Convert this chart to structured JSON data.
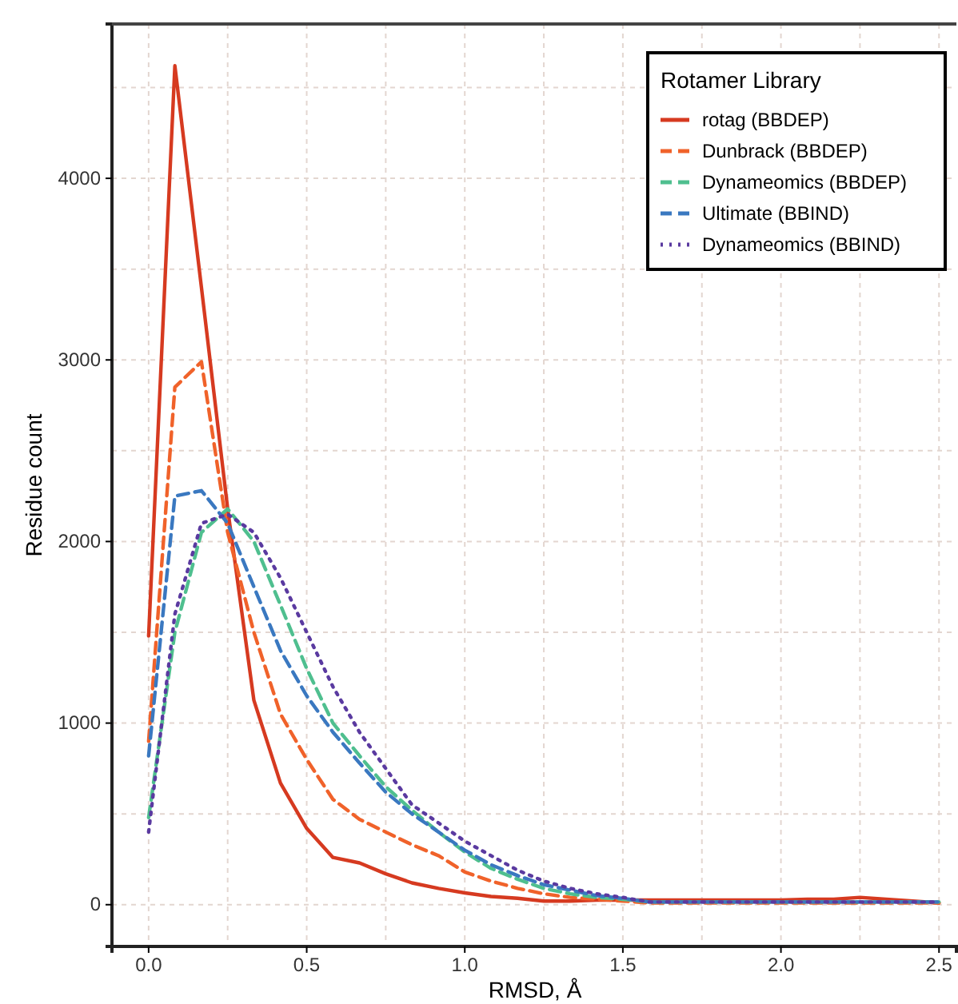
{
  "chart_data": {
    "type": "line",
    "xlabel": "RMSD, Å",
    "ylabel": "Residue count",
    "legend_title": "Rotamer Library",
    "x": [
      0,
      0.083,
      0.167,
      0.25,
      0.333,
      0.417,
      0.5,
      0.583,
      0.667,
      0.75,
      0.833,
      0.917,
      1,
      1.083,
      1.167,
      1.25,
      1.333,
      1.417,
      1.5,
      1.583,
      1.667,
      1.75,
      1.833,
      1.917,
      2,
      2.083,
      2.167,
      2.25,
      2.333,
      2.417,
      2.5
    ],
    "series": [
      {
        "name": "rotag (BBDEP)",
        "color": "#d63a20",
        "line_style": "solid",
        "values": [
          1480,
          4620,
          3400,
          2180,
          1125,
          670,
          420,
          260,
          230,
          170,
          120,
          90,
          65,
          45,
          35,
          20,
          20,
          25,
          25,
          25,
          25,
          25,
          25,
          25,
          25,
          30,
          30,
          40,
          30,
          20,
          10
        ]
      },
      {
        "name": "Dunbrack (BBDEP)",
        "color": "#f0622a",
        "line_style": "dashed",
        "values": [
          900,
          2850,
          2990,
          2050,
          1500,
          1050,
          800,
          580,
          470,
          400,
          330,
          270,
          180,
          130,
          90,
          60,
          40,
          30,
          20,
          10,
          10,
          10,
          10,
          10,
          10,
          10,
          10,
          10,
          10,
          10,
          10
        ]
      },
      {
        "name": "Dynameomics (BBDEP)",
        "color": "#4fbf8f",
        "line_style": "dashed",
        "values": [
          480,
          1500,
          2050,
          2180,
          2000,
          1650,
          1300,
          1000,
          820,
          650,
          520,
          400,
          290,
          200,
          140,
          90,
          60,
          40,
          30,
          15,
          15,
          15,
          15,
          15,
          15,
          15,
          15,
          15,
          15,
          15,
          15
        ]
      },
      {
        "name": "Ultimate (BBIND)",
        "color": "#3a78c0",
        "line_style": "dashed",
        "values": [
          820,
          2250,
          2280,
          2100,
          1750,
          1400,
          1150,
          950,
          780,
          620,
          500,
          400,
          300,
          220,
          160,
          110,
          80,
          50,
          35,
          15,
          15,
          15,
          15,
          15,
          15,
          15,
          15,
          15,
          15,
          15,
          15
        ]
      },
      {
        "name": "Dynameomics (BBIND)",
        "color": "#5a3aa0",
        "line_style": "dotted",
        "values": [
          400,
          1600,
          2100,
          2150,
          2050,
          1800,
          1500,
          1200,
          950,
          750,
          550,
          450,
          350,
          270,
          190,
          130,
          90,
          60,
          40,
          15,
          15,
          15,
          15,
          15,
          15,
          15,
          15,
          15,
          15,
          15,
          15
        ]
      }
    ],
    "xlim": [
      -0.116,
      2.555
    ],
    "xticks": [
      {
        "value": 0,
        "label": "0.0"
      },
      {
        "value": 0.5,
        "label": "0.5"
      },
      {
        "value": 1,
        "label": "1.0"
      },
      {
        "value": 1.5,
        "label": "1.5"
      },
      {
        "value": 2,
        "label": "2.0"
      },
      {
        "value": 2.5,
        "label": "2.5"
      }
    ],
    "ylim": [
      -230,
      4850
    ],
    "yticks": [
      0,
      1000,
      2000,
      3000,
      4000
    ],
    "grid": true,
    "legend": "top right"
  }
}
